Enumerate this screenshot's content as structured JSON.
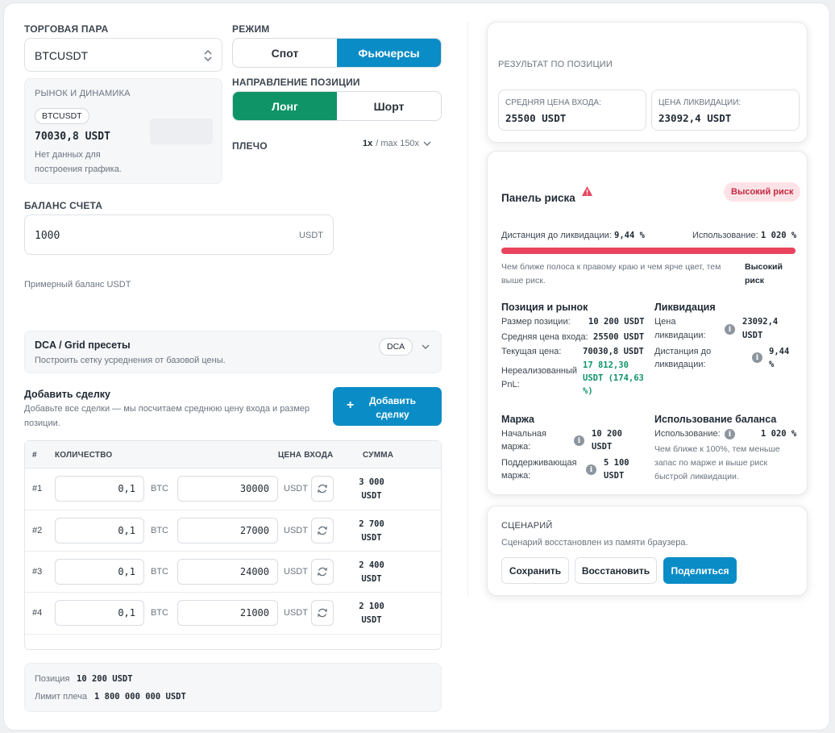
{
  "pair": {
    "label": "ТОРГОВАЯ ПАРА",
    "value": "BTCUSDT"
  },
  "market": {
    "title": "РЫНОК И ДИНАМИКА",
    "badge": "BTCUSDT",
    "price": "70030,8 USDT",
    "no_data_line1": "Нет данных для",
    "no_data_line2": "построения графика."
  },
  "mode": {
    "label": "РЕЖИМ",
    "spot": "Спот",
    "futures": "Фьючерсы"
  },
  "direction": {
    "label": "НАПРАВЛЕНИЕ ПОЗИЦИИ",
    "long": "Лонг",
    "short": "Шорт"
  },
  "leverage": {
    "label": "ПЛЕЧО",
    "value": "1x",
    "max": "/ max 150x"
  },
  "balance": {
    "label": "БАЛАНС СЧЕТА",
    "value": "1000",
    "unit": "USDT",
    "hint": "Примерный баланс USDT"
  },
  "presets": {
    "title": "DCA / Grid пресеты",
    "subtitle": "Построить сетку усреднения от базовой цены.",
    "badge": "DCA"
  },
  "add_trade": {
    "title": "Добавить сделку",
    "desc_line1": "Добавьте все сделки — мы посчитаем среднюю цену входа и размер",
    "desc_line2": "позиции.",
    "button_line1": "Добавить",
    "button_line2": "сделку",
    "plus": "+"
  },
  "table": {
    "headers": {
      "num": "#",
      "qty": "КОЛИЧЕСТВО",
      "price": "ЦЕНА ВХОДА",
      "sum": "СУММА"
    },
    "rows": [
      {
        "num": "#1",
        "qty": "0,1",
        "qty_unit": "BTC",
        "price": "30000",
        "price_unit": "USDT",
        "sum1": "3 000",
        "sum2": "USDT"
      },
      {
        "num": "#2",
        "qty": "0,1",
        "qty_unit": "BTC",
        "price": "27000",
        "price_unit": "USDT",
        "sum1": "2 700",
        "sum2": "USDT"
      },
      {
        "num": "#3",
        "qty": "0,1",
        "qty_unit": "BTC",
        "price": "24000",
        "price_unit": "USDT",
        "sum1": "2 400",
        "sum2": "USDT"
      },
      {
        "num": "#4",
        "qty": "0,1",
        "qty_unit": "BTC",
        "price": "21000",
        "price_unit": "USDT",
        "sum1": "2 100",
        "sum2": "USDT"
      }
    ]
  },
  "summary": {
    "position_label": "Позиция",
    "position_value": "10 200 USDT",
    "limit_label": "Лимит плеча",
    "limit_value": "1 800 000 000 USDT"
  },
  "result": {
    "title": "РЕЗУЛЬТАТ ПО ПОЗИЦИИ",
    "avg_label": "СРЕДНЯЯ ЦЕНА ВХОДА:",
    "avg_value": "25500 USDT",
    "liq_label": "ЦЕНА ЛИКВИДАЦИИ:",
    "liq_value": "23092,4 USDT"
  },
  "risk": {
    "title": "Панель риска",
    "badge": "Высокий риск",
    "dist_label": "Дистанция до ликвидации:",
    "dist_value": "9,44 %",
    "usage_label": "Использование:",
    "usage_value": "1 020 %",
    "bar_fill": 1.0,
    "note_line1": "Чем ближе полоса к правому краю и чем ярче цвет, тем",
    "note_line2": "выше риск.",
    "level_line1": "Высокий",
    "level_line2": "риск",
    "pos": {
      "title": "Позиция и рынок",
      "size_label": "Размер позиции:",
      "size_value": "10 200 USDT",
      "avg_label": "Средняя цена входа:",
      "avg_value": "25500 USDT",
      "cur_label": "Текущая цена:",
      "cur_value": "70030,8 USDT",
      "pnl_label1": "Нереализованный",
      "pnl_label2": "PnL:",
      "pnl_line1": "17 812,30",
      "pnl_line2": "USDT (174,63",
      "pnl_line3": "%)"
    },
    "liq": {
      "title": "Ликвидация",
      "price_label1": "Цена",
      "price_label2": "ликвидации:",
      "price_value1": "23092,4",
      "price_value2": "USDT",
      "dist_label1": "Дистанция до",
      "dist_label2": "ликвидации:",
      "dist_value1": "9,44",
      "dist_value2": "%"
    },
    "margin": {
      "title": "Маржа",
      "init_label1": "Начальная",
      "init_label2": "маржа:",
      "init_value1": "10 200",
      "init_value2": "USDT",
      "maint_label1": "Поддерживающая",
      "maint_label2": "маржа:",
      "maint_value1": "5 100",
      "maint_value2": "USDT"
    },
    "balance_use": {
      "title": "Использование баланса",
      "label": "Использование:",
      "value": "1 020 %",
      "note1": "Чем ближе к 100%, тем меньше",
      "note2": "запас по марже и выше риск",
      "note3": "быстрой ликвидации."
    }
  },
  "scenario": {
    "title": "СЦЕНАРИЙ",
    "status": "Сценарий восстановлен из памяти браузера.",
    "save": "Сохранить",
    "restore": "Восстановить",
    "share": "Поделиться"
  },
  "colors": {
    "blue": "#0a8cc6",
    "green": "#0e9467",
    "danger": "#e8445e"
  }
}
